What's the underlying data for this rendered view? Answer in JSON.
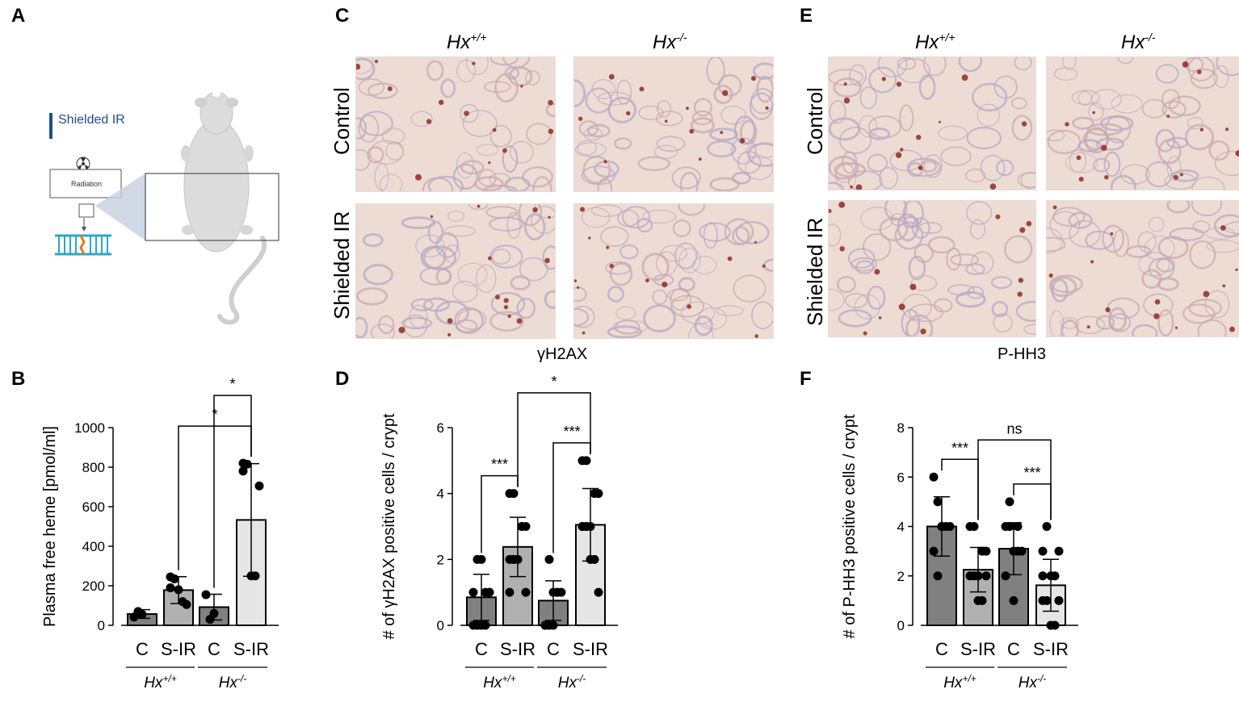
{
  "panels": {
    "A": "A",
    "B": "B",
    "C": "C",
    "D": "D",
    "E": "E",
    "F": "F"
  },
  "schematic": {
    "label": "Shielded IR",
    "box_label": "Radiation",
    "accent": "#1f4e8c"
  },
  "micrographs": {
    "C": {
      "col_labels": [
        "Hx",
        "Hx"
      ],
      "col_sups": [
        "+/+",
        "-/-"
      ],
      "row_labels": [
        "Control",
        "Shielded IR"
      ],
      "stain": "γH2AX"
    },
    "E": {
      "col_labels": [
        "Hx",
        "Hx"
      ],
      "col_sups": [
        "+/+",
        "-/-"
      ],
      "row_labels": [
        "Control",
        "Shielded IR"
      ],
      "stain": "P-HH3"
    }
  },
  "chart_data": [
    {
      "panel": "B",
      "type": "bar",
      "categories": [
        "C",
        "S-IR",
        "C",
        "S-IR"
      ],
      "groups": [
        {
          "label": "Hx",
          "sup": "+/+"
        },
        {
          "label": "Hx",
          "sup": "-/-"
        }
      ],
      "values": [
        57,
        178,
        92,
        533
      ],
      "errors": [
        22,
        68,
        65,
        285
      ],
      "points": [
        [
          42,
          70,
          55
        ],
        [
          245,
          235,
          180,
          120,
          105,
          190
        ],
        [
          155,
          30,
          60
        ],
        [
          820,
          815,
          250,
          250,
          705,
          780
        ]
      ],
      "ylabel": "Plasma free heme [pmol/ml]",
      "ylim": [
        0,
        1000
      ],
      "yticks": [
        0,
        200,
        400,
        600,
        800,
        1000
      ],
      "significance": [
        {
          "from": 1,
          "to": 3,
          "label": "*"
        },
        {
          "from": 2,
          "to": 3,
          "label": "*"
        }
      ],
      "colors": [
        "#808080",
        "#b0b0b0",
        "#808080",
        "#e6e6e6"
      ]
    },
    {
      "panel": "D",
      "type": "bar",
      "categories": [
        "C",
        "S-IR",
        "C",
        "S-IR"
      ],
      "groups": [
        {
          "label": "Hx",
          "sup": "+/+"
        },
        {
          "label": "Hx",
          "sup": "-/-"
        }
      ],
      "values": [
        0.85,
        2.38,
        0.75,
        3.05
      ],
      "errors": [
        0.7,
        0.9,
        0.6,
        1.1
      ],
      "points": [
        [
          0,
          0,
          0,
          1,
          1,
          1,
          2,
          2,
          0,
          1
        ],
        [
          2,
          2,
          2,
          3,
          3,
          4,
          4,
          2,
          3,
          1,
          1,
          2
        ],
        [
          0,
          0,
          1,
          1,
          1,
          0,
          2,
          0,
          1
        ],
        [
          3,
          3,
          3,
          4,
          4,
          5,
          5,
          2,
          2,
          1,
          3,
          3
        ]
      ],
      "ylabel": "# of γH2AX positive cells / crypt",
      "ylim": [
        0,
        6
      ],
      "yticks": [
        0,
        2,
        4,
        6
      ],
      "significance": [
        {
          "from": 0,
          "to": 1,
          "label": "***"
        },
        {
          "from": 2,
          "to": 3,
          "label": "***"
        },
        {
          "from": 1,
          "to": 3,
          "label": "*"
        }
      ],
      "colors": [
        "#808080",
        "#b0b0b0",
        "#808080",
        "#e6e6e6"
      ]
    },
    {
      "panel": "F",
      "type": "bar",
      "categories": [
        "C",
        "S-IR",
        "C",
        "S-IR"
      ],
      "groups": [
        {
          "label": "Hx",
          "sup": "+/+"
        },
        {
          "label": "Hx",
          "sup": "-/-"
        }
      ],
      "values": [
        4.0,
        2.25,
        3.1,
        1.62
      ],
      "errors": [
        1.2,
        0.9,
        1.05,
        1.05
      ],
      "points": [
        [
          6,
          5,
          4,
          4,
          4,
          3,
          2,
          4
        ],
        [
          2,
          2,
          2,
          3,
          3,
          4,
          4,
          1,
          1,
          2
        ],
        [
          4,
          4,
          3,
          3,
          3,
          2,
          5,
          1,
          4
        ],
        [
          1,
          1,
          2,
          2,
          3,
          3,
          4,
          0,
          0,
          1,
          2
        ]
      ],
      "ylabel": "# of P-HH3 positive cells / crypt",
      "ylim": [
        0,
        8
      ],
      "yticks": [
        0,
        2,
        4,
        6,
        8
      ],
      "significance": [
        {
          "from": 0,
          "to": 1,
          "label": "***"
        },
        {
          "from": 2,
          "to": 3,
          "label": "***"
        },
        {
          "from": 1,
          "to": 3,
          "label": "ns"
        }
      ],
      "colors": [
        "#808080",
        "#b0b0b0",
        "#808080",
        "#e6e6e6"
      ]
    }
  ]
}
